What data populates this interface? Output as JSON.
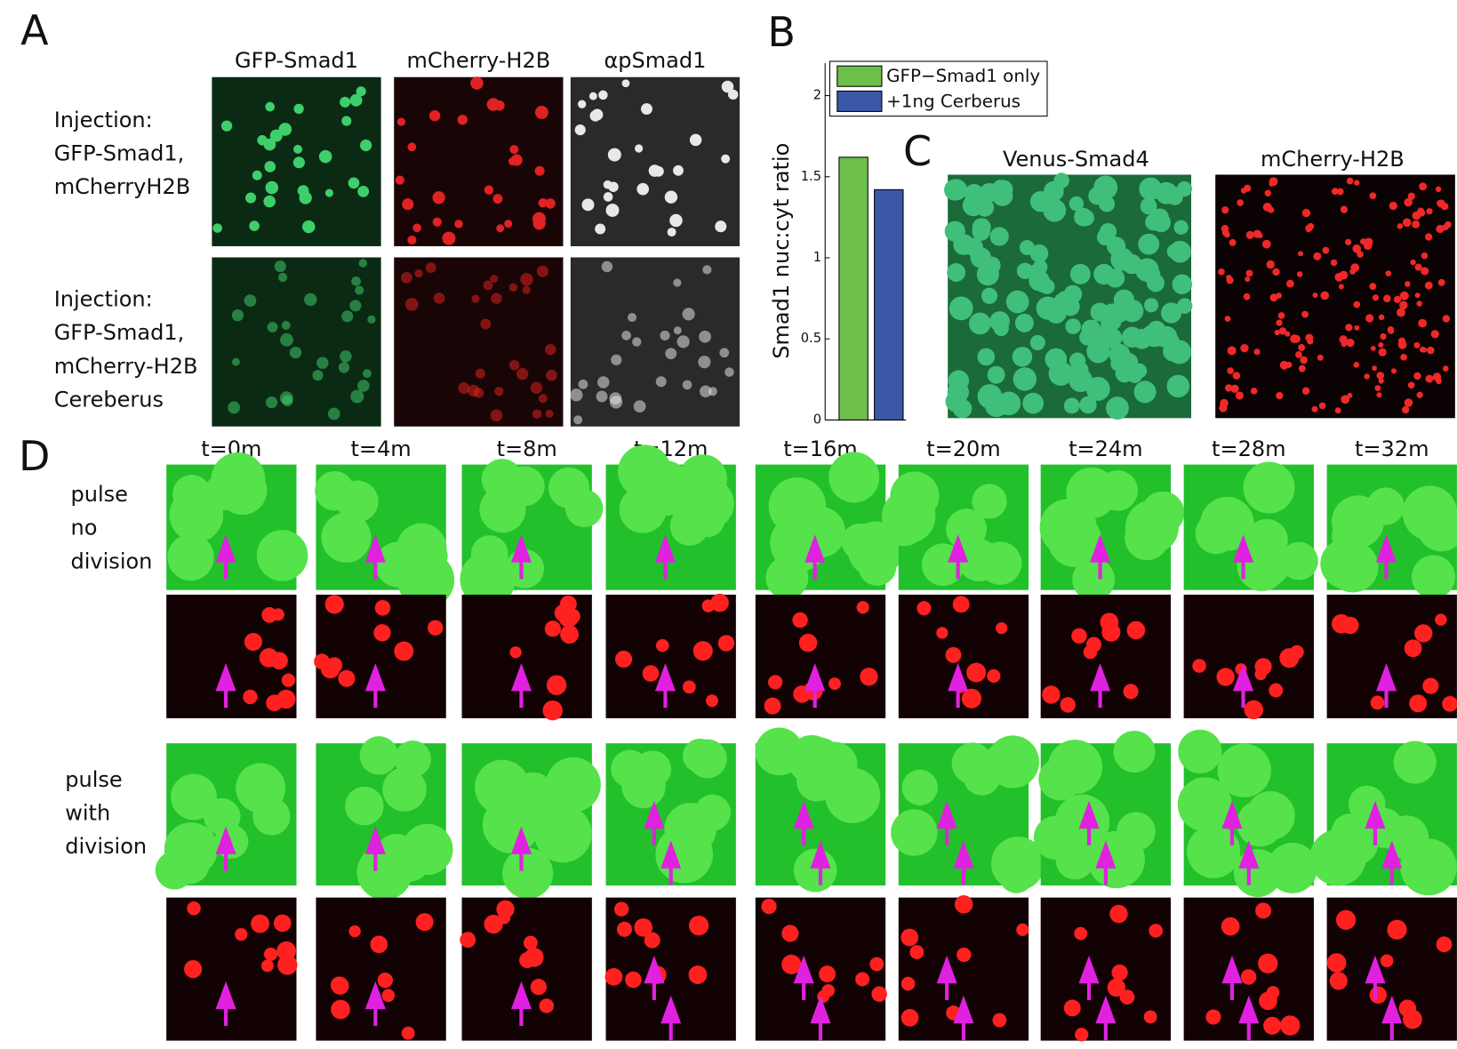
{
  "panel_a": {
    "label": "A",
    "columns": [
      "GFP-Smad1",
      "mCherry-H2B",
      "αpSmad1"
    ],
    "rows": [
      [
        "Injection:",
        "GFP-Smad1,",
        "mCherryH2B"
      ],
      [
        "Injection:",
        "GFP-Smad1,",
        "mCherry-H2B",
        "Cereberus"
      ]
    ]
  },
  "panel_b": {
    "label": "B"
  },
  "chart_data": {
    "type": "bar",
    "ylabel": "Smad1 nuc:cyt ratio",
    "categories": [
      null
    ],
    "series": [
      {
        "name": "GFP−Smad1 only",
        "color": "#6cbf4a",
        "values": [
          1.62
        ]
      },
      {
        "name": "+1ng Cerberus",
        "color": "#3b58a8",
        "values": [
          1.42
        ]
      }
    ],
    "ylim": [
      0,
      2.2
    ],
    "yticks": [
      0,
      0.5,
      1,
      1.5,
      2
    ],
    "legend": "top"
  },
  "panel_c": {
    "label": "C",
    "columns": [
      "Venus-Smad4",
      "mCherry-H2B"
    ]
  },
  "panel_d": {
    "label": "D",
    "times": [
      "t=0m",
      "t=4m",
      "t=8m",
      "t=12m",
      "t=16m",
      "t=20m",
      "t=24m",
      "t=28m",
      "t=32m"
    ],
    "rows": [
      [
        "pulse",
        "no",
        "division"
      ],
      [
        "pulse",
        "with",
        "division"
      ]
    ]
  }
}
